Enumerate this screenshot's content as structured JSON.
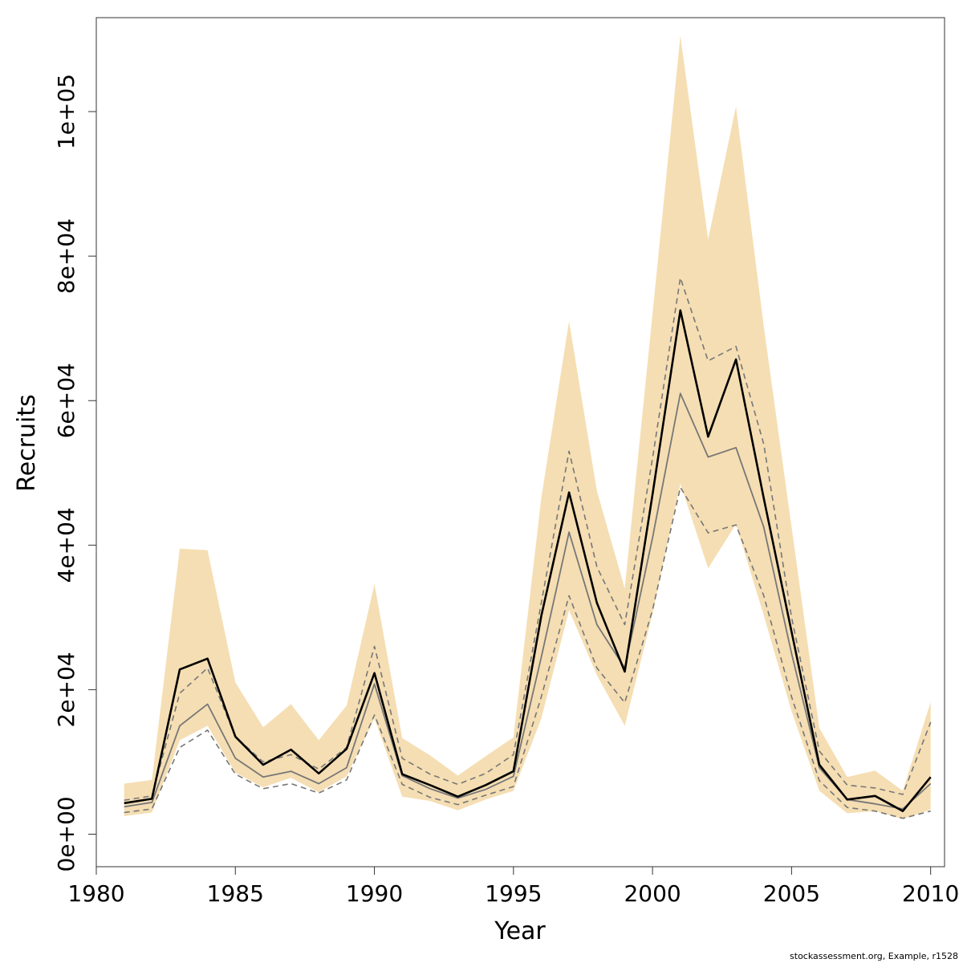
{
  "chart_data": {
    "type": "area",
    "xlabel": "Year",
    "ylabel": "Recruits",
    "xlim": [
      1980,
      2010.5
    ],
    "ylim": [
      -4500,
      113000
    ],
    "xticks": [
      1980,
      1985,
      1990,
      1995,
      2000,
      2005,
      2010
    ],
    "xtick_labels": [
      "1980",
      "1985",
      "1990",
      "1995",
      "2000",
      "2005",
      "2010"
    ],
    "yticks": [
      0,
      20000,
      40000,
      60000,
      80000,
      100000
    ],
    "ytick_labels": [
      "0e+00",
      "2e+04",
      "4e+04",
      "6e+04",
      "8e+04",
      "1e+05"
    ],
    "x": [
      1981,
      1982,
      1983,
      1984,
      1985,
      1986,
      1987,
      1988,
      1989,
      1990,
      1991,
      1992,
      1993,
      1994,
      1995,
      1996,
      1997,
      1998,
      1999,
      2000,
      2001,
      2002,
      2003,
      2004,
      2005,
      2006,
      2007,
      2008,
      2009,
      2010
    ],
    "series": [
      {
        "role": "band-upper",
        "color": "#f5deb3",
        "values": [
          7000,
          7500,
          39500,
          39300,
          21000,
          14800,
          18000,
          13000,
          17800,
          34600,
          13300,
          10900,
          8100,
          10800,
          13400,
          46500,
          71000,
          47500,
          34000,
          72000,
          110500,
          82300,
          100700,
          70300,
          42500,
          14700,
          7900,
          8800,
          6000,
          18300
        ]
      },
      {
        "role": "band-lower",
        "color": "#f5deb3",
        "values": [
          2500,
          3000,
          13000,
          15000,
          8500,
          6500,
          7800,
          5800,
          8000,
          16000,
          5200,
          4600,
          3300,
          4800,
          6000,
          16000,
          31000,
          22000,
          15000,
          30500,
          48500,
          36800,
          42900,
          30300,
          17000,
          6000,
          2900,
          3200,
          2100,
          3400
        ]
      },
      {
        "role": "median",
        "color": "#000000",
        "values": [
          4300,
          4900,
          22800,
          24300,
          13500,
          9600,
          11700,
          8400,
          11800,
          22300,
          8300,
          6800,
          5200,
          6800,
          8700,
          30200,
          47300,
          32000,
          22500,
          47000,
          72500,
          55000,
          65700,
          46500,
          28000,
          9600,
          4800,
          5300,
          3200,
          7900
        ]
      },
      {
        "role": "mpd",
        "color": "#777777",
        "values": [
          3800,
          4400,
          15000,
          18000,
          10500,
          7900,
          8700,
          7000,
          9200,
          20800,
          8100,
          6300,
          5000,
          6200,
          8000,
          24500,
          41800,
          29000,
          23000,
          41000,
          61000,
          52200,
          53500,
          42500,
          25000,
          9200,
          4800,
          4200,
          3500,
          7000
        ]
      },
      {
        "role": "dashed-upper",
        "color": "#777777",
        "values": [
          4700,
          5300,
          19500,
          23000,
          13500,
          10000,
          11000,
          9000,
          12000,
          26000,
          10500,
          8300,
          6900,
          8400,
          11000,
          32000,
          53000,
          37000,
          29000,
          52000,
          77000,
          65500,
          67500,
          54000,
          30000,
          11500,
          6800,
          6400,
          5500,
          15500
        ]
      },
      {
        "role": "dashed-lower",
        "color": "#777777",
        "values": [
          3000,
          3500,
          12000,
          14400,
          8300,
          6300,
          7000,
          5700,
          7500,
          16500,
          6900,
          5100,
          4100,
          5400,
          6600,
          19000,
          33000,
          23000,
          18200,
          31000,
          48000,
          41700,
          42800,
          33000,
          19000,
          7400,
          3700,
          3200,
          2200,
          3200
        ]
      }
    ]
  },
  "footer": "stockassessment.org, Example, r1528"
}
